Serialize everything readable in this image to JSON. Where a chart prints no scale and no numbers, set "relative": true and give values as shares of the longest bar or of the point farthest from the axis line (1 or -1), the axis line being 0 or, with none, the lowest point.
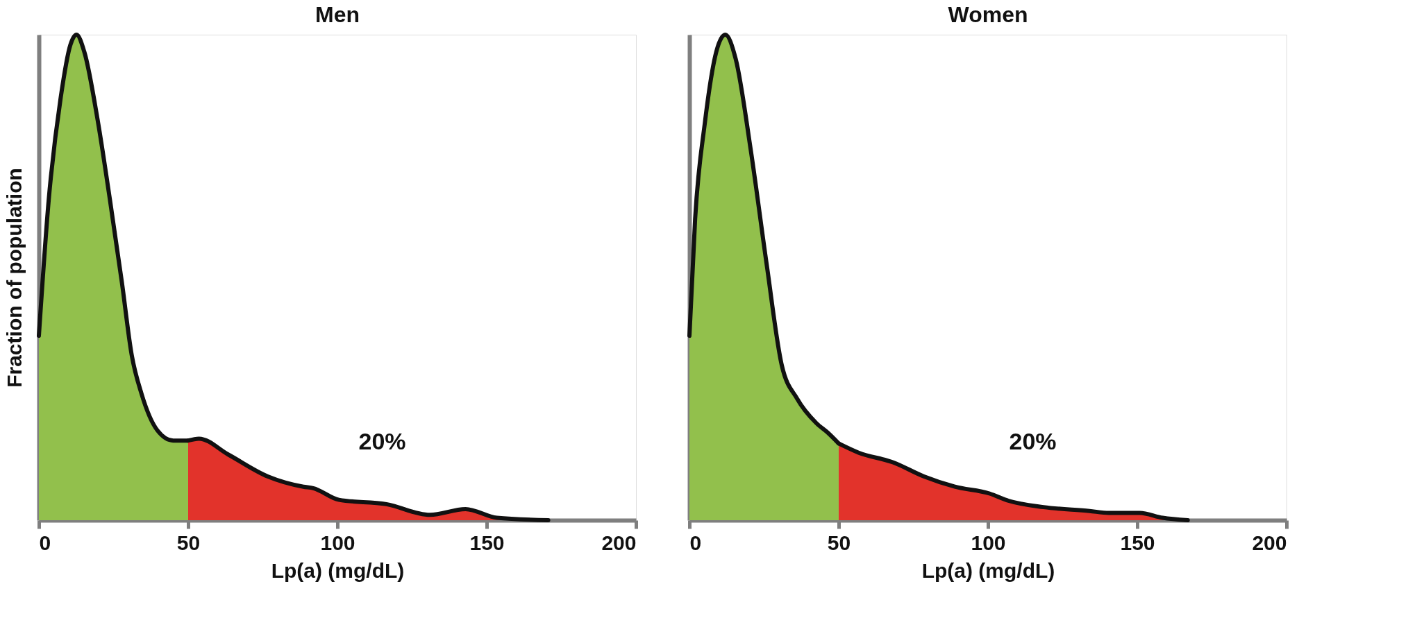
{
  "chart_data": [
    {
      "type": "area",
      "title": "Men",
      "xlabel": "Lp(a) (mg/dL)",
      "ylabel": "Fraction of population",
      "relative": true,
      "xlim": [
        0,
        200
      ],
      "xticks": [
        0,
        50,
        100,
        150,
        200
      ],
      "tick_labels": "x",
      "annotations": [
        "20%"
      ],
      "series": [
        {
          "color": "#92c04c",
          "x": [
            0,
            3.3,
            7.3,
            10.6,
            12.6,
            15.2,
            19.8,
            23.8,
            27.8,
            31.1,
            34.4,
            39.7,
            45,
            50
          ],
          "values": [
            0.38,
            0.66,
            0.87,
            0.98,
            1,
            0.965,
            0.82,
            0.66,
            0.49,
            0.34,
            0.26,
            0.185,
            0.164,
            0.164
          ]
        },
        {
          "color": "#e2332b",
          "x": [
            50,
            53.6,
            63.5,
            76.7,
            88.6,
            91.9,
            100.5,
            116.4,
            131,
            142.9,
            153.4,
            170.6
          ],
          "values": [
            0.164,
            0.168,
            0.135,
            0.09,
            0.069,
            0.066,
            0.042,
            0.033,
            0.011,
            0.023,
            0.005,
            0
          ]
        }
      ]
    },
    {
      "type": "area",
      "title": "Women",
      "xlabel": "Lp(a) (mg/dL)",
      "relative": true,
      "xlim": [
        0,
        200
      ],
      "xticks": [
        0,
        50,
        100,
        150,
        200
      ],
      "tick_labels": "x",
      "annotations": [
        "20%"
      ],
      "series": [
        {
          "color": "#92c04c",
          "x": [
            0,
            1.9,
            5.2,
            9,
            12,
            15.5,
            20.6,
            25.8,
            30.9,
            36.1,
            42.5,
            46.4,
            50
          ],
          "values": [
            0.38,
            0.62,
            0.82,
            0.965,
            1,
            0.95,
            0.76,
            0.53,
            0.32,
            0.25,
            0.2,
            0.18,
            0.158
          ]
        },
        {
          "color": "#e2332b",
          "x": [
            50,
            56.7,
            68.3,
            78.6,
            88.9,
            100.5,
            106.9,
            118.6,
            134,
            140.5,
            150.8,
            158.5,
            166.9
          ],
          "values": [
            0.158,
            0.139,
            0.119,
            0.09,
            0.069,
            0.055,
            0.04,
            0.027,
            0.019,
            0.015,
            0.015,
            0.005,
            0
          ]
        }
      ]
    }
  ]
}
